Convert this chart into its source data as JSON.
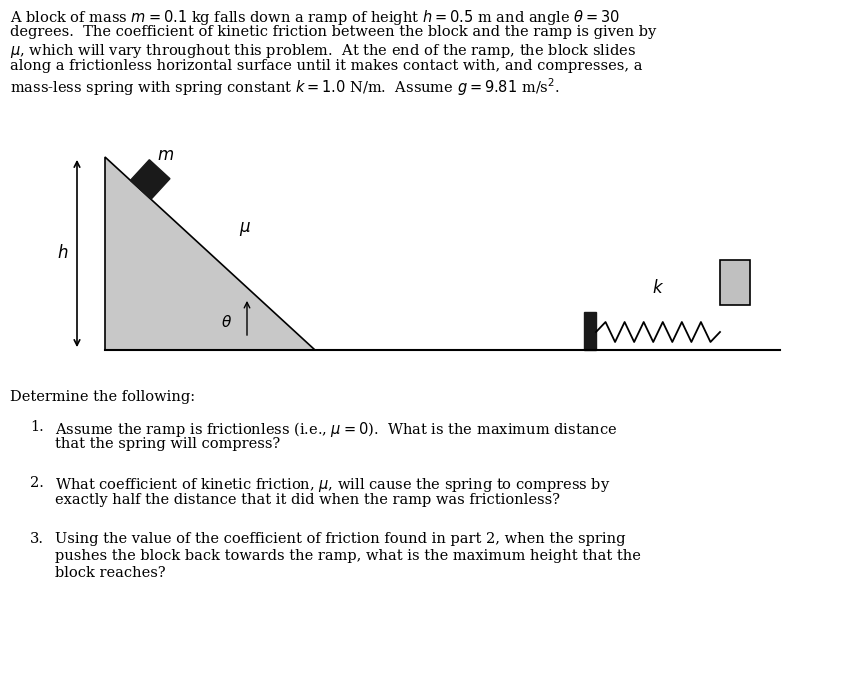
{
  "bg_color": "#ffffff",
  "ramp_fill": "#c8c8c8",
  "ramp_edge": "#000000",
  "block_fill": "#1a1a1a",
  "spring_color": "#000000",
  "ground_color": "#000000",
  "arrow_color": "#000000",
  "label_color": "#000000",
  "text_color": "#000000",
  "wall_fill": "#1a1a1a",
  "block2_fill": "#c0c0c0",
  "title_lines": [
    "A block of mass $m = 0.1$ kg falls down a ramp of height $h = 0.5$ m and angle $\\theta = 30$",
    "degrees.  The coefficient of kinetic friction between the block and the ramp is given by",
    "$\\mu$, which will vary throughout this problem.  At the end of the ramp, the block slides",
    "along a frictionless horizontal surface until it makes contact with, and compresses, a",
    "mass-less spring with spring constant $k = 1.0$ N/m.  Assume $g = 9.81$ m/s$^2$."
  ],
  "determine_text": "Determine the following:",
  "item1_lines": [
    "Assume the ramp is frictionless (i.e., $\\mu = 0$).  What is the maximum distance",
    "that the spring will compress?"
  ],
  "item2_lines": [
    "What coefficient of kinetic friction, $\\mu$, will cause the spring to compress by",
    "exactly half the distance that it did when the ramp was frictionless?"
  ],
  "item3_lines": [
    "Using the value of the coefficient of friction found in part 2, when the spring",
    "pushes the block back towards the ramp, what is the maximum height that the",
    "block reaches?"
  ]
}
